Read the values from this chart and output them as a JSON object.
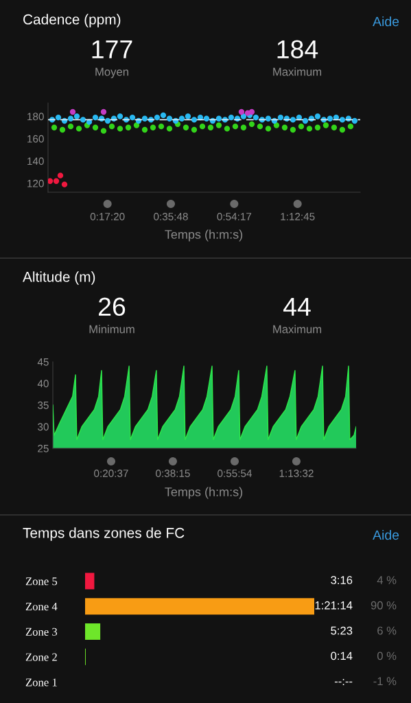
{
  "chart_data": [
    {
      "type": "scatter",
      "title": "Cadence (ppm)",
      "xlabel": "Temps (h:m:s)",
      "annotations": [
        "177",
        "Moyen",
        "184",
        "Maximum",
        "Aide"
      ],
      "xlim": [
        0,
        1.517
      ],
      "ylim": [
        112,
        192
      ],
      "xticks": [
        {
          "value": 0.2889,
          "label": "0:17:20"
        },
        {
          "value": 0.5967,
          "label": "0:35:48"
        },
        {
          "value": 0.9047,
          "label": "0:54:17"
        },
        {
          "value": 1.2125,
          "label": "1:12:45"
        }
      ],
      "yticks": [
        120,
        140,
        160,
        180
      ],
      "marker": "circle",
      "ref_lines": [
        {
          "axis": "y",
          "value": 177,
          "color": "#d8eef8",
          "line_style": "dashed"
        }
      ],
      "series": [
        {
          "color": "#33d41a",
          "x": [
            0.03,
            0.07,
            0.11,
            0.15,
            0.19,
            0.23,
            0.27,
            0.31,
            0.35,
            0.39,
            0.43,
            0.47,
            0.51,
            0.55,
            0.59,
            0.63,
            0.67,
            0.71,
            0.75,
            0.79,
            0.83,
            0.87,
            0.91,
            0.95,
            0.99,
            1.03,
            1.07,
            1.11,
            1.15,
            1.19,
            1.23,
            1.27,
            1.31,
            1.35,
            1.39,
            1.43,
            1.47
          ],
          "values": [
            170,
            168,
            171,
            169,
            172,
            170,
            167,
            171,
            169,
            170,
            172,
            168,
            170,
            171,
            169,
            173,
            170,
            168,
            171,
            170,
            172,
            169,
            171,
            170,
            173,
            171,
            169,
            172,
            170,
            168,
            171,
            169,
            170,
            172,
            170,
            168,
            171
          ]
        },
        {
          "color": "#29b9f2",
          "x": [
            0.02,
            0.05,
            0.08,
            0.11,
            0.14,
            0.17,
            0.2,
            0.23,
            0.26,
            0.29,
            0.32,
            0.35,
            0.38,
            0.41,
            0.44,
            0.47,
            0.5,
            0.53,
            0.56,
            0.59,
            0.62,
            0.65,
            0.68,
            0.71,
            0.74,
            0.77,
            0.8,
            0.83,
            0.86,
            0.89,
            0.92,
            0.95,
            0.98,
            1.01,
            1.04,
            1.07,
            1.1,
            1.13,
            1.16,
            1.19,
            1.22,
            1.25,
            1.28,
            1.31,
            1.34,
            1.37,
            1.4,
            1.43,
            1.46,
            1.49
          ],
          "values": [
            177,
            179,
            176,
            178,
            180,
            177,
            175,
            179,
            178,
            176,
            178,
            180,
            177,
            179,
            176,
            178,
            177,
            179,
            181,
            178,
            176,
            178,
            180,
            177,
            179,
            178,
            176,
            178,
            177,
            179,
            178,
            180,
            181,
            179,
            177,
            178,
            176,
            179,
            178,
            177,
            179,
            176,
            178,
            180,
            177,
            178,
            179,
            177,
            178,
            176
          ]
        },
        {
          "color": "#c43cc4",
          "x": [
            0.12,
            0.27,
            0.94,
            0.97,
            0.99
          ],
          "values": [
            184,
            184,
            184,
            183,
            184
          ]
        },
        {
          "color": "#f0183f",
          "x": [
            0.01,
            0.04,
            0.06,
            0.08
          ],
          "values": [
            122,
            122,
            127,
            119
          ]
        }
      ]
    },
    {
      "type": "area",
      "title": "Altitude (m)",
      "xlabel": "Temps (h:m:s)",
      "annotations": [
        "26",
        "Minimum",
        "44",
        "Maximum"
      ],
      "xlim": [
        0.066,
        1.51
      ],
      "ylim": [
        25,
        45
      ],
      "xticks": [
        {
          "value": 0.3436,
          "label": "0:20:37"
        },
        {
          "value": 0.6375,
          "label": "0:38:15"
        },
        {
          "value": 0.9317,
          "label": "0:55:54"
        },
        {
          "value": 1.2256,
          "label": "1:13:32"
        }
      ],
      "yticks": [
        25,
        30,
        35,
        40,
        45
      ],
      "series": [
        {
          "color": "#22c95a",
          "x": [
            0.066,
            0.072,
            0.1,
            0.13,
            0.16,
            0.174,
            0.18,
            0.204,
            0.234,
            0.264,
            0.284,
            0.298,
            0.304,
            0.328,
            0.358,
            0.388,
            0.408,
            0.429,
            0.435,
            0.459,
            0.489,
            0.519,
            0.539,
            0.559,
            0.565,
            0.589,
            0.619,
            0.649,
            0.669,
            0.69,
            0.696,
            0.72,
            0.75,
            0.78,
            0.8,
            0.824,
            0.83,
            0.854,
            0.884,
            0.914,
            0.934,
            0.951,
            0.957,
            0.981,
            1.011,
            1.041,
            1.061,
            1.085,
            1.091,
            1.115,
            1.145,
            1.175,
            1.195,
            1.219,
            1.225,
            1.249,
            1.279,
            1.309,
            1.329,
            1.35,
            1.356,
            1.38,
            1.41,
            1.44,
            1.46,
            1.474,
            1.48,
            1.5,
            1.51
          ],
          "values": [
            35,
            28,
            31,
            34,
            37,
            42,
            27,
            30,
            32,
            34,
            37,
            43,
            27,
            30,
            32,
            34,
            37,
            44,
            27,
            30,
            32,
            34,
            37,
            43,
            27,
            30,
            32,
            34,
            37,
            44,
            27,
            30,
            32,
            34,
            37,
            44,
            27,
            30,
            32,
            34,
            37,
            43,
            27,
            30,
            32,
            34,
            37,
            44,
            27,
            30,
            32,
            34,
            37,
            43,
            27,
            30,
            32,
            34,
            37,
            44,
            27,
            30,
            32,
            34,
            37,
            44,
            27,
            28,
            30
          ]
        }
      ]
    },
    {
      "type": "bar",
      "orientation": "horizontal",
      "title": "Temps dans zones de FC",
      "annotations": [
        "Aide",
        "4 %",
        "90 %",
        "6 %",
        "0 %",
        "-1 %"
      ],
      "categories": [
        "Zone 5",
        "Zone 4",
        "Zone 3",
        "Zone 2",
        "Zone 1"
      ],
      "values": [
        196,
        4874,
        323,
        14,
        null
      ],
      "colors": [
        "#f0183f",
        "#f89c14",
        "#6ee62a",
        "#6ee62a",
        "#2a8cff"
      ],
      "value_labels": [
        "3:16",
        "1:21:14",
        "5:23",
        "0:14",
        "--:--"
      ]
    }
  ]
}
